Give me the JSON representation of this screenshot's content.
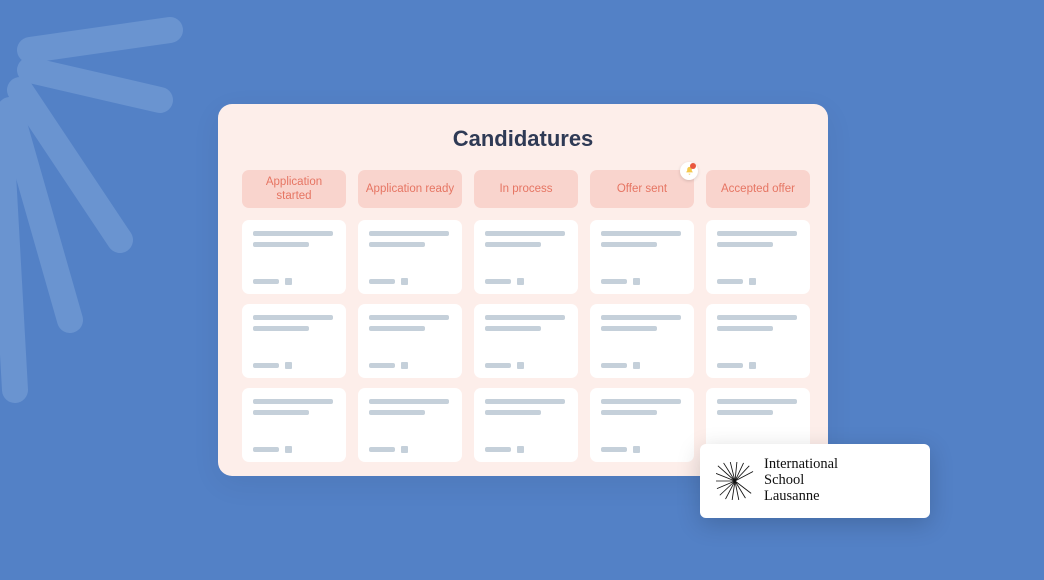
{
  "colors": {
    "page_bg": "#5381c6",
    "ray_stroke": "#6a94d0",
    "board_bg": "#fdeeea",
    "title_color": "#2f3a55",
    "col_header_bg": "#f9d4cd",
    "col_header_text": "#e67563",
    "card_bg": "#ffffff",
    "placeholder": "#c5d0da",
    "notif_bell": "#f5c84b",
    "notif_dot": "#e9573f"
  },
  "board": {
    "title": "Candidatures",
    "columns": [
      {
        "label": "Application started",
        "has_notification": false
      },
      {
        "label": "Application ready",
        "has_notification": false
      },
      {
        "label": "In process",
        "has_notification": false
      },
      {
        "label": "Offer sent",
        "has_notification": true
      },
      {
        "label": "Accepted offer",
        "has_notification": false
      }
    ],
    "rows_per_column": 3
  },
  "logo": {
    "line1": "International",
    "line2": "School",
    "line3": "Lausanne"
  }
}
